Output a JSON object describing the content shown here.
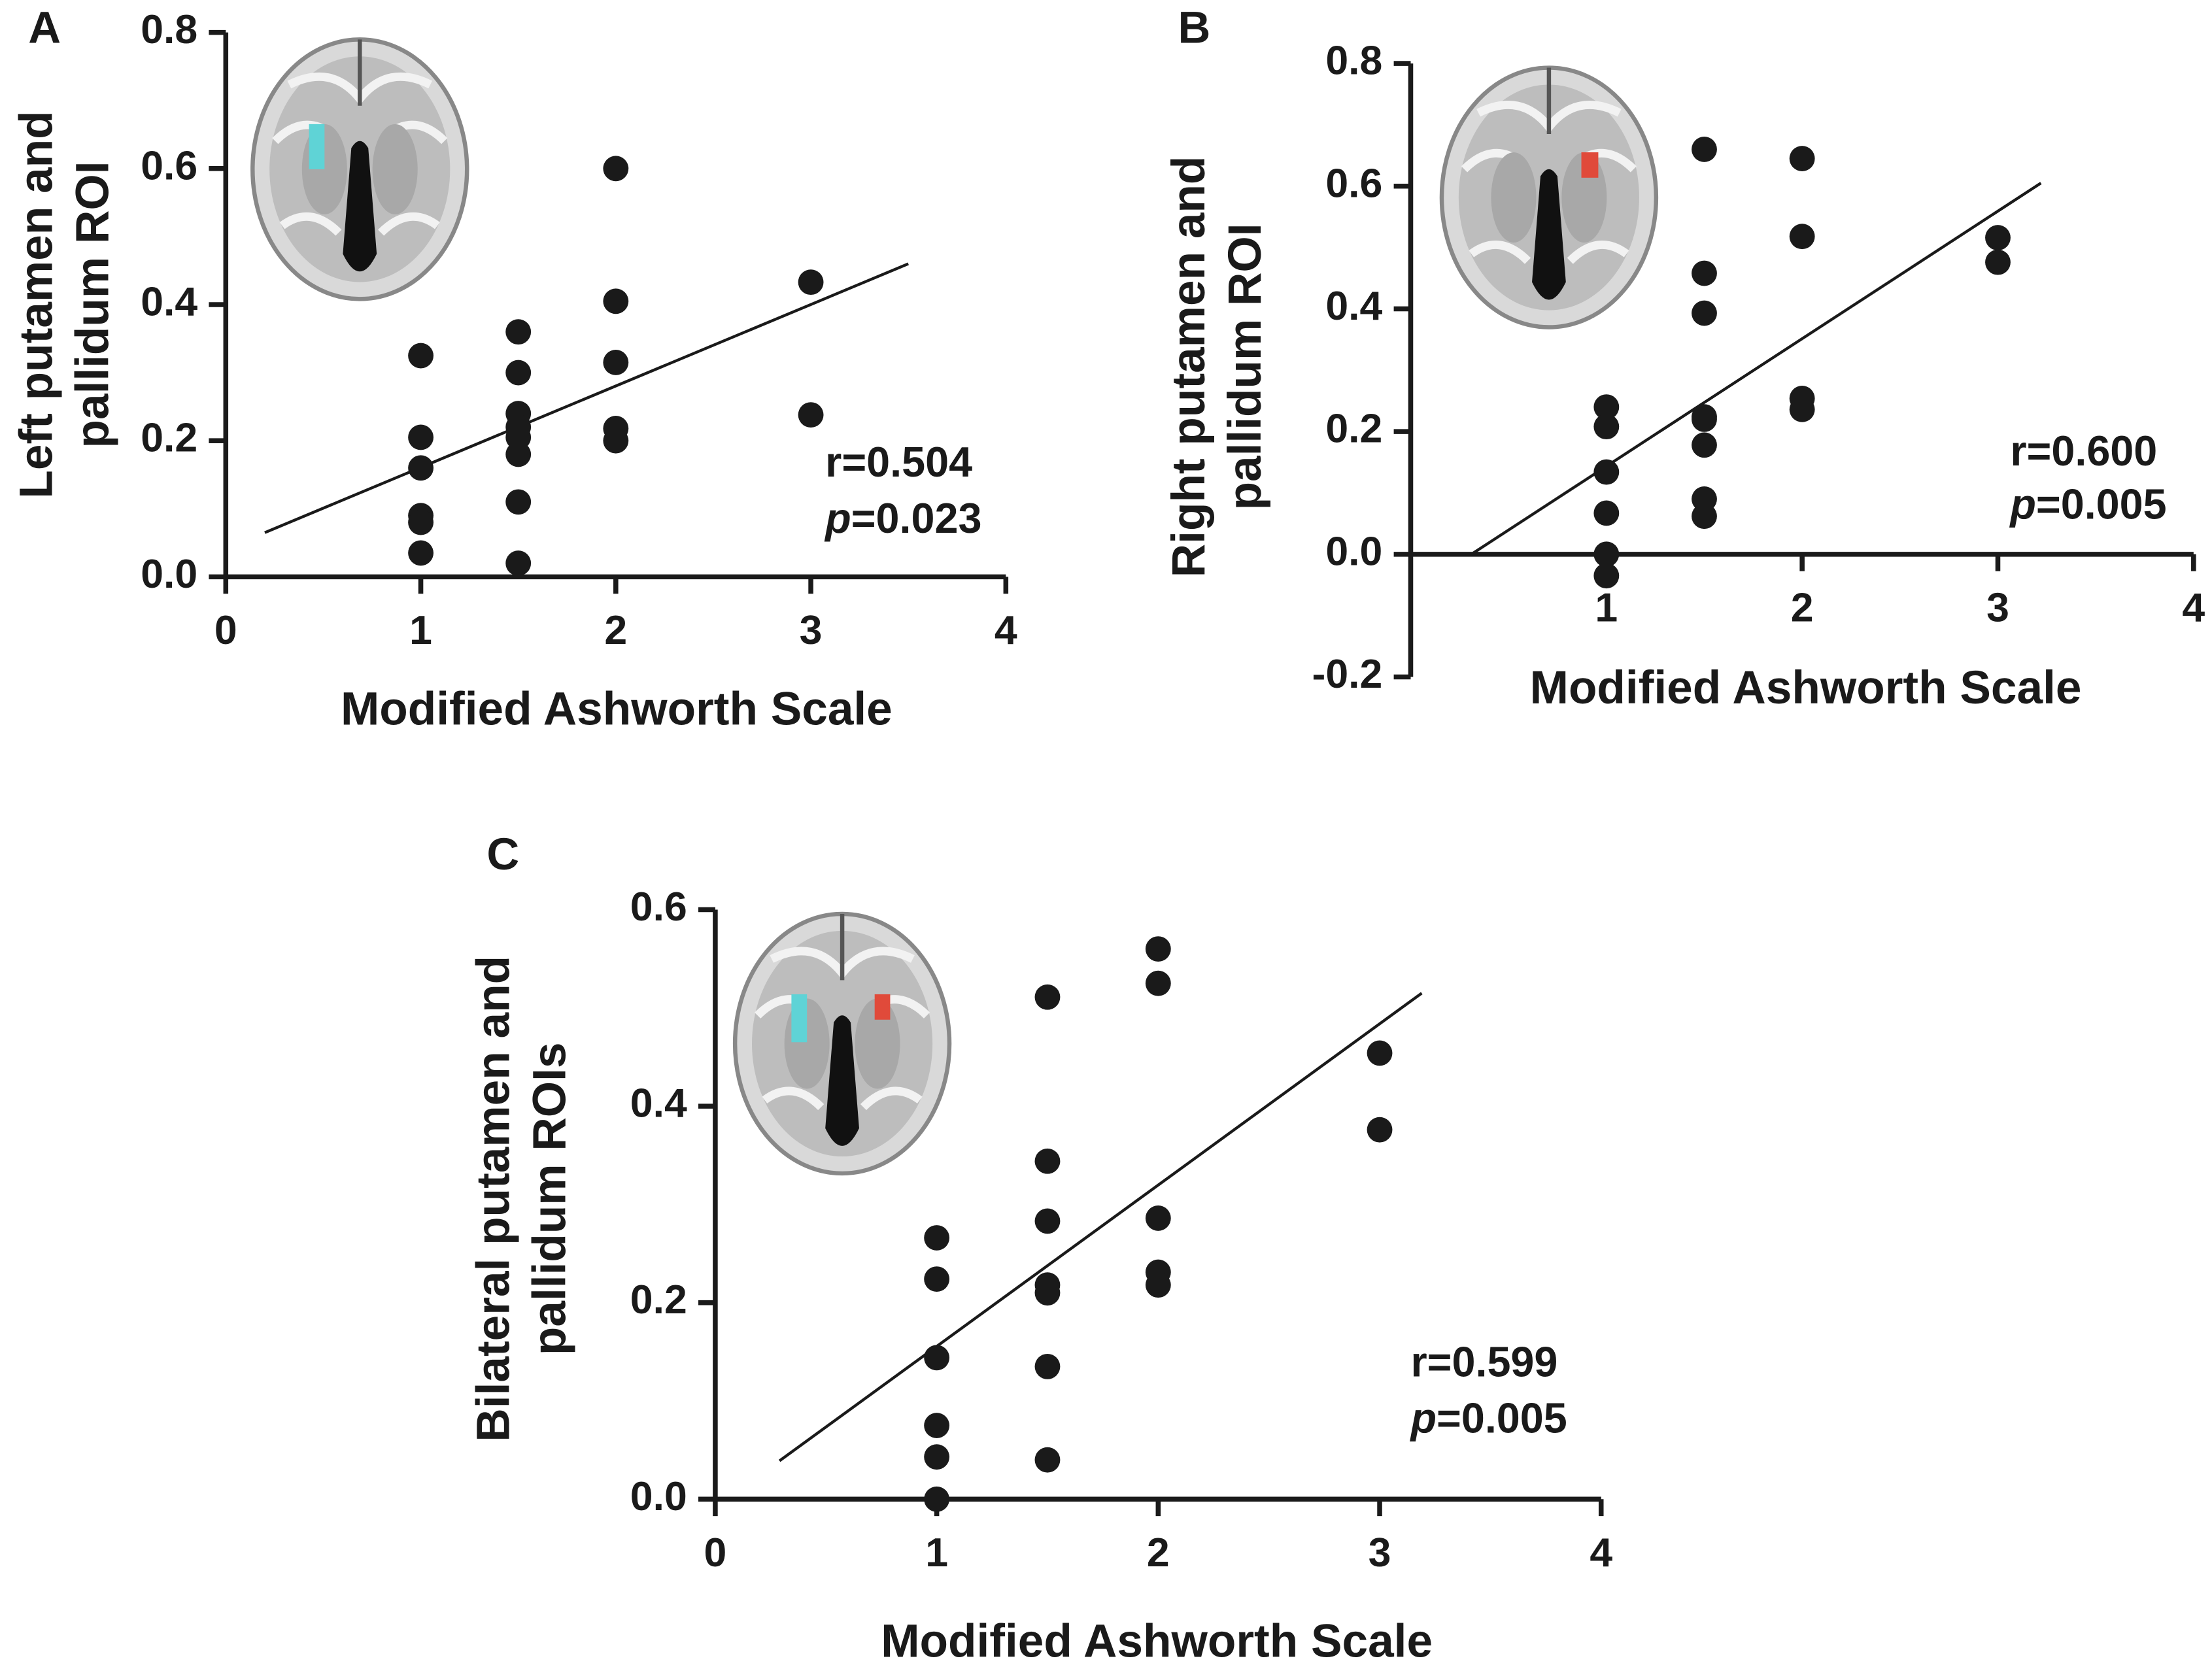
{
  "chart_data": [
    {
      "type": "scatter",
      "panel": "A",
      "ylabel": [
        "Left putamen and",
        "pallidum ROI"
      ],
      "xlabel": "Modified Ashworth Scale",
      "xlim": [
        0,
        4
      ],
      "ylim": [
        0,
        0.8
      ],
      "xticks": [
        0,
        1,
        2,
        3,
        4
      ],
      "yticks": [
        {
          "value": 0,
          "label": "0.0"
        },
        0.2,
        0.4,
        0.6,
        0.8
      ],
      "color": "#1a1a1a",
      "x": [
        1,
        1,
        1,
        1,
        1,
        1,
        1.5,
        1.5,
        1.5,
        1.5,
        1.5,
        1.5,
        1.5,
        1.5,
        2,
        2,
        2,
        2,
        2,
        3,
        3
      ],
      "y": [
        0.325,
        0.205,
        0.16,
        0.09,
        0.08,
        0.035,
        0.36,
        0.3,
        0.24,
        0.22,
        0.205,
        0.18,
        0.11,
        0.02,
        0.6,
        0.405,
        0.315,
        0.218,
        0.2,
        0.433,
        0.238
      ],
      "fit": {
        "x": [
          0.2,
          3.5
        ],
        "y": [
          0.065,
          0.46
        ]
      },
      "r_text": "r=0.504",
      "p_symbol": "p",
      "p_text": "=0.023"
    },
    {
      "type": "scatter",
      "panel": "B",
      "ylabel": [
        "Right putamen and",
        "pallidum ROI"
      ],
      "xlabel": "Modified Ashworth Scale",
      "xlim": [
        0,
        4
      ],
      "ylim": [
        -0.2,
        0.8
      ],
      "xticks": [
        1,
        2,
        3,
        4
      ],
      "yticks": [
        -0.2,
        {
          "value": 0,
          "label": "0.0"
        },
        0.2,
        0.4,
        0.6,
        0.8
      ],
      "color": "#1a1a1a",
      "x": [
        1,
        1,
        1,
        1,
        1,
        1,
        1.5,
        1.5,
        1.5,
        1.5,
        1.5,
        1.5,
        1.5,
        1.5,
        2,
        2,
        2,
        2,
        3,
        3
      ],
      "y": [
        0.24,
        0.208,
        0.134,
        0.067,
        0,
        -0.035,
        0.66,
        0.458,
        0.393,
        0.224,
        0.22,
        0.178,
        0.09,
        0.062,
        0.645,
        0.518,
        0.254,
        0.236,
        0.516,
        0.476
      ],
      "fit": {
        "x": [
          0.31,
          3.22
        ],
        "y": [
          0,
          0.605
        ]
      },
      "r_text": "r=0.600",
      "p_symbol": "p",
      "p_text": "=0.005"
    },
    {
      "type": "scatter",
      "panel": "C",
      "ylabel": [
        "Bilateral putamen and",
        "pallidum ROIs"
      ],
      "xlabel": "Modified Ashworth Scale",
      "xlim": [
        0,
        4
      ],
      "ylim": [
        0,
        0.6
      ],
      "xticks": [
        0,
        1,
        2,
        3,
        4
      ],
      "yticks": [
        {
          "value": 0,
          "label": "0.0"
        },
        0.2,
        0.4,
        0.6
      ],
      "color": "#1a1a1a",
      "x": [
        1,
        1,
        1,
        1,
        1,
        1,
        1.5,
        1.5,
        1.5,
        1.5,
        1.5,
        1.5,
        1.5,
        2,
        2,
        2,
        2,
        2,
        3,
        3
      ],
      "y": [
        0.266,
        0.224,
        0.144,
        0.075,
        0.043,
        0,
        0.511,
        0.344,
        0.283,
        0.218,
        0.21,
        0.135,
        0.04,
        0.56,
        0.525,
        0.286,
        0.231,
        0.218,
        0.454,
        0.376
      ],
      "fit": {
        "x": [
          0.29,
          3.19
        ],
        "y": [
          0.039,
          0.515
        ]
      },
      "r_text": "r=0.599",
      "p_symbol": "p",
      "p_text": "=0.005"
    }
  ]
}
